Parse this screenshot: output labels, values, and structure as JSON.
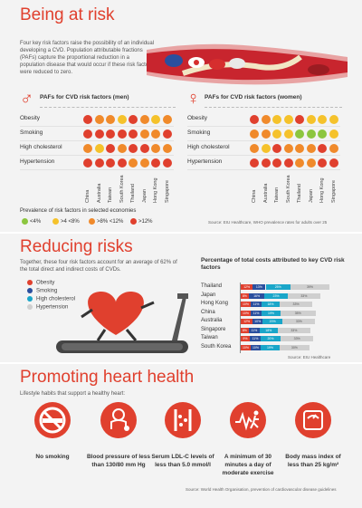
{
  "section1": {
    "title": "Being at risk",
    "intro": "Four key risk factors raise the possibility of an individual developing a CVD. Population attributable fractions (PAFs) capture the proportional reduction in a population disease that would occur if these risk factors were reduced to zero.",
    "men_heading": "PAFs for CVD risk factors (men)",
    "women_heading": "PAFs for CVD risk factors (women)",
    "male_symbol": "♂",
    "female_symbol": "♀",
    "risk_factors": [
      "Obesity",
      "Smoking",
      "High cholesterol",
      "Hypertension"
    ],
    "countries": [
      "China",
      "Australia",
      "Taiwan",
      "South Korea",
      "Thailand",
      "Japan",
      "Hong Kong",
      "Singapore"
    ],
    "legend_title": "Prevalence of risk factors in selected economies",
    "legend": [
      "<4%",
      ">4 <8%",
      ">8% <12%",
      ">12%"
    ],
    "legend_colors": [
      "#8cc63f",
      "#f5c22b",
      "#f08a2b",
      "#e0402e"
    ],
    "men_levels": [
      [
        3,
        2,
        2,
        1,
        3,
        2,
        1,
        2
      ],
      [
        3,
        3,
        3,
        3,
        3,
        2,
        2,
        3
      ],
      [
        2,
        1,
        3,
        2,
        3,
        3,
        2,
        2
      ],
      [
        3,
        3,
        3,
        3,
        2,
        2,
        3,
        3
      ]
    ],
    "women_levels": [
      [
        3,
        2,
        1,
        1,
        3,
        1,
        1,
        1
      ],
      [
        2,
        2,
        1,
        1,
        0,
        0,
        0,
        1
      ],
      [
        2,
        1,
        3,
        2,
        2,
        2,
        3,
        2
      ],
      [
        3,
        3,
        3,
        3,
        2,
        2,
        3,
        3
      ]
    ],
    "source": "Source: EIU Healthcare, WHO prevalence rates for adults over 25"
  },
  "section2": {
    "title": "Reducing risks",
    "text": "Together, these four risk factors account for an average of 62% of the total direct and indirect costs of CVDs.",
    "legend": [
      "Obesity",
      "Smoking",
      "High cholesterol",
      "Hypertension"
    ],
    "legend_colors": [
      "#e0402e",
      "#2a4f9e",
      "#1aa6c9",
      "#cfcfcf"
    ],
    "source": "Source: EIU Healthcare"
  },
  "chart_data": {
    "type": "bar",
    "title": "Percentage of total costs attributed to key CVD risk factors",
    "categories": [
      "Thailand",
      "Japan",
      "Hong Kong",
      "China",
      "Australia",
      "Singapore",
      "Taiwan",
      "South Korea"
    ],
    "series": [
      {
        "name": "Obesity",
        "values": [
          12,
          8,
          10,
          10,
          12,
          8,
          9,
          10
        ]
      },
      {
        "name": "Smoking",
        "values": [
          13,
          16,
          11,
          11,
          10,
          11,
          11,
          10
        ]
      },
      {
        "name": "High cholesterol",
        "values": [
          25,
          23,
          18,
          19,
          20,
          18,
          20,
          19
        ]
      },
      {
        "name": "Hypertension",
        "values": [
          39,
          33,
          33,
          35,
          33,
          33,
          33,
          30
        ]
      }
    ]
  },
  "section3": {
    "title": "Promoting heart health",
    "subtitle": "Lifestyle habits that support a healthy heart:",
    "habits": [
      {
        "icon": "no-smoking-icon",
        "text": "No smoking"
      },
      {
        "icon": "blood-pressure-icon",
        "text": "Blood pressure of less than 130/80 mm Hg"
      },
      {
        "icon": "ldl-cholesterol-icon",
        "text": "Serum LDL-C levels of less than 5.0 mmol/l"
      },
      {
        "icon": "exercise-icon",
        "text": "A minimum of 30 minutes a day of moderate exercise"
      },
      {
        "icon": "bmi-scale-icon",
        "text": "Body mass index of less than 25 kg/m²"
      }
    ],
    "source": "Source: World Health Organisation, prevention of cardiovascular disease guidelines"
  }
}
